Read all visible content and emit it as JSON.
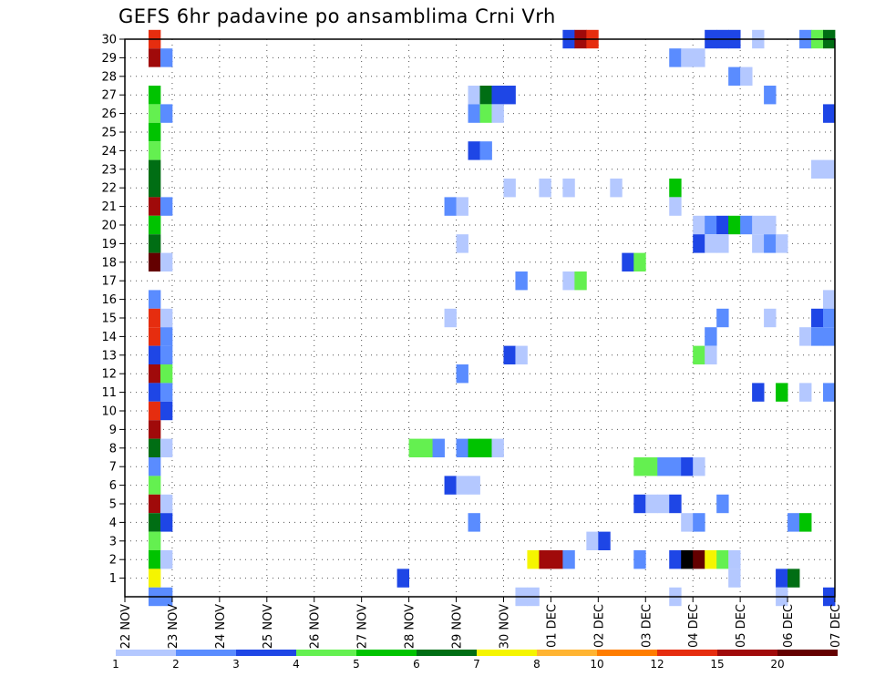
{
  "chart_data": {
    "type": "heatmap",
    "title": "GEFS 6hr padavine po ansamblima Crni Vrh",
    "xlabel": "",
    "ylabel": "",
    "x_start": "22 NOV",
    "x_ticks": [
      "22 NOV",
      "23 NOV",
      "24 NOV",
      "25 NOV",
      "26 NOV",
      "27 NOV",
      "28 NOV",
      "29 NOV",
      "30 NOV",
      "01 DEC",
      "02 DEC",
      "03 DEC",
      "04 DEC",
      "05 DEC",
      "06 DEC",
      "07 DEC"
    ],
    "y_ticks": [
      1,
      2,
      3,
      4,
      5,
      6,
      7,
      8,
      9,
      10,
      11,
      12,
      13,
      14,
      15,
      16,
      17,
      18,
      19,
      20,
      21,
      22,
      23,
      24,
      25,
      26,
      27,
      28,
      29,
      30
    ],
    "xlim_steps": [
      0,
      60
    ],
    "ylim": [
      0,
      30
    ],
    "grid": true,
    "steps_per_day": 4,
    "legend": {
      "placement": "bottom",
      "labels": [
        "1",
        "2",
        "3",
        "4",
        "5",
        "6",
        "7",
        "8",
        "10",
        "12",
        "15",
        "20"
      ],
      "colors": [
        "#b4c8ff",
        "#5a8cff",
        "#1e46e6",
        "#64f050",
        "#00c300",
        "#006e14",
        "#f5f500",
        "#ffb432",
        "#ff7d00",
        "#e62d0f",
        "#a00a0a",
        "#640000"
      ]
    },
    "cells": [
      [
        2,
        30,
        10
      ],
      [
        2,
        29,
        11
      ],
      [
        3,
        29,
        2
      ],
      [
        2,
        27,
        5
      ],
      [
        2,
        26,
        4
      ],
      [
        3,
        26,
        2
      ],
      [
        2,
        25,
        5
      ],
      [
        2,
        24,
        4
      ],
      [
        2,
        23,
        6
      ],
      [
        2,
        22,
        6
      ],
      [
        2,
        21,
        11
      ],
      [
        3,
        21,
        2
      ],
      [
        2,
        20,
        5
      ],
      [
        2,
        19,
        6
      ],
      [
        2,
        18,
        12
      ],
      [
        3,
        18,
        1
      ],
      [
        2,
        16,
        2
      ],
      [
        2,
        15,
        10
      ],
      [
        3,
        15,
        1
      ],
      [
        2,
        14,
        10
      ],
      [
        3,
        14,
        2
      ],
      [
        2,
        13,
        3
      ],
      [
        3,
        13,
        2
      ],
      [
        2,
        12,
        11
      ],
      [
        3,
        12,
        4
      ],
      [
        2,
        11,
        3
      ],
      [
        3,
        11,
        2
      ],
      [
        2,
        10,
        10
      ],
      [
        3,
        10,
        3
      ],
      [
        2,
        9,
        11
      ],
      [
        2,
        8,
        6
      ],
      [
        3,
        8,
        1
      ],
      [
        2,
        7,
        2
      ],
      [
        2,
        6,
        4
      ],
      [
        2,
        5,
        11
      ],
      [
        3,
        5,
        1
      ],
      [
        2,
        4,
        6
      ],
      [
        3,
        4,
        3
      ],
      [
        2,
        3,
        4
      ],
      [
        2,
        2,
        5
      ],
      [
        3,
        2,
        1
      ],
      [
        2,
        1,
        7
      ],
      [
        2,
        0,
        2
      ],
      [
        3,
        0,
        2
      ],
      [
        37,
        30,
        3
      ],
      [
        38,
        30,
        11
      ],
      [
        39,
        30,
        10
      ],
      [
        49,
        30,
        3
      ],
      [
        50,
        30,
        3
      ],
      [
        51,
        30,
        3
      ],
      [
        53,
        30,
        1
      ],
      [
        57,
        30,
        2
      ],
      [
        58,
        30,
        4
      ],
      [
        59,
        30,
        6
      ],
      [
        46,
        29,
        2
      ],
      [
        47,
        29,
        1
      ],
      [
        48,
        29,
        1
      ],
      [
        51,
        28,
        2
      ],
      [
        52,
        28,
        1
      ],
      [
        54,
        27,
        2
      ],
      [
        29,
        27,
        1
      ],
      [
        30,
        27,
        6
      ],
      [
        31,
        27,
        3
      ],
      [
        32,
        27,
        3
      ],
      [
        29,
        26,
        2
      ],
      [
        30,
        26,
        4
      ],
      [
        31,
        26,
        1
      ],
      [
        59,
        26,
        3
      ],
      [
        29,
        24,
        3
      ],
      [
        30,
        24,
        2
      ],
      [
        58,
        23,
        1
      ],
      [
        59,
        23,
        1
      ],
      [
        32,
        22,
        1
      ],
      [
        35,
        22,
        1
      ],
      [
        37,
        22,
        1
      ],
      [
        41,
        22,
        1
      ],
      [
        46,
        22,
        5
      ],
      [
        27,
        21,
        2
      ],
      [
        28,
        21,
        1
      ],
      [
        46,
        21,
        1
      ],
      [
        48,
        20,
        1
      ],
      [
        49,
        20,
        2
      ],
      [
        50,
        20,
        3
      ],
      [
        51,
        20,
        5
      ],
      [
        52,
        20,
        2
      ],
      [
        53,
        20,
        1
      ],
      [
        54,
        20,
        1
      ],
      [
        28,
        19,
        1
      ],
      [
        48,
        19,
        3
      ],
      [
        49,
        19,
        1
      ],
      [
        50,
        19,
        1
      ],
      [
        53,
        19,
        1
      ],
      [
        54,
        19,
        2
      ],
      [
        55,
        19,
        1
      ],
      [
        42,
        18,
        3
      ],
      [
        43,
        18,
        4
      ],
      [
        33,
        17,
        2
      ],
      [
        37,
        17,
        1
      ],
      [
        38,
        17,
        4
      ],
      [
        59,
        16,
        1
      ],
      [
        50,
        15,
        2
      ],
      [
        54,
        15,
        1
      ],
      [
        58,
        15,
        3
      ],
      [
        59,
        15,
        2
      ],
      [
        27,
        15,
        1
      ],
      [
        49,
        14,
        2
      ],
      [
        57,
        14,
        1
      ],
      [
        58,
        14,
        2
      ],
      [
        59,
        14,
        2
      ],
      [
        32,
        13,
        3
      ],
      [
        33,
        13,
        1
      ],
      [
        48,
        13,
        4
      ],
      [
        49,
        13,
        1
      ],
      [
        28,
        12,
        2
      ],
      [
        53,
        11,
        3
      ],
      [
        55,
        11,
        5
      ],
      [
        57,
        11,
        1
      ],
      [
        59,
        11,
        2
      ],
      [
        24,
        8,
        4
      ],
      [
        25,
        8,
        4
      ],
      [
        26,
        8,
        2
      ],
      [
        28,
        8,
        2
      ],
      [
        29,
        8,
        5
      ],
      [
        30,
        8,
        5
      ],
      [
        31,
        8,
        1
      ],
      [
        43,
        7,
        4
      ],
      [
        44,
        7,
        4
      ],
      [
        45,
        7,
        2
      ],
      [
        46,
        7,
        2
      ],
      [
        47,
        7,
        3
      ],
      [
        48,
        7,
        1
      ],
      [
        27,
        6,
        3
      ],
      [
        28,
        6,
        1
      ],
      [
        29,
        6,
        1
      ],
      [
        43,
        5,
        3
      ],
      [
        44,
        5,
        1
      ],
      [
        45,
        5,
        1
      ],
      [
        46,
        5,
        3
      ],
      [
        50,
        5,
        2
      ],
      [
        29,
        4,
        2
      ],
      [
        47,
        4,
        1
      ],
      [
        48,
        4,
        2
      ],
      [
        56,
        4,
        2
      ],
      [
        57,
        4,
        5
      ],
      [
        39,
        3,
        1
      ],
      [
        40,
        3,
        3
      ],
      [
        34,
        2,
        7
      ],
      [
        35,
        2,
        11
      ],
      [
        36,
        2,
        11
      ],
      [
        37,
        2,
        2
      ],
      [
        43,
        2,
        2
      ],
      [
        46,
        2,
        3
      ],
      [
        47,
        2,
        13
      ],
      [
        48,
        2,
        12
      ],
      [
        49,
        2,
        7
      ],
      [
        50,
        2,
        4
      ],
      [
        51,
        2,
        1
      ],
      [
        23,
        1,
        3
      ],
      [
        51,
        1,
        1
      ],
      [
        55,
        1,
        3
      ],
      [
        56,
        1,
        6
      ],
      [
        33,
        0,
        1
      ],
      [
        34,
        0,
        1
      ],
      [
        46,
        0,
        1
      ],
      [
        55,
        0,
        1
      ],
      [
        59,
        0,
        3
      ]
    ]
  }
}
